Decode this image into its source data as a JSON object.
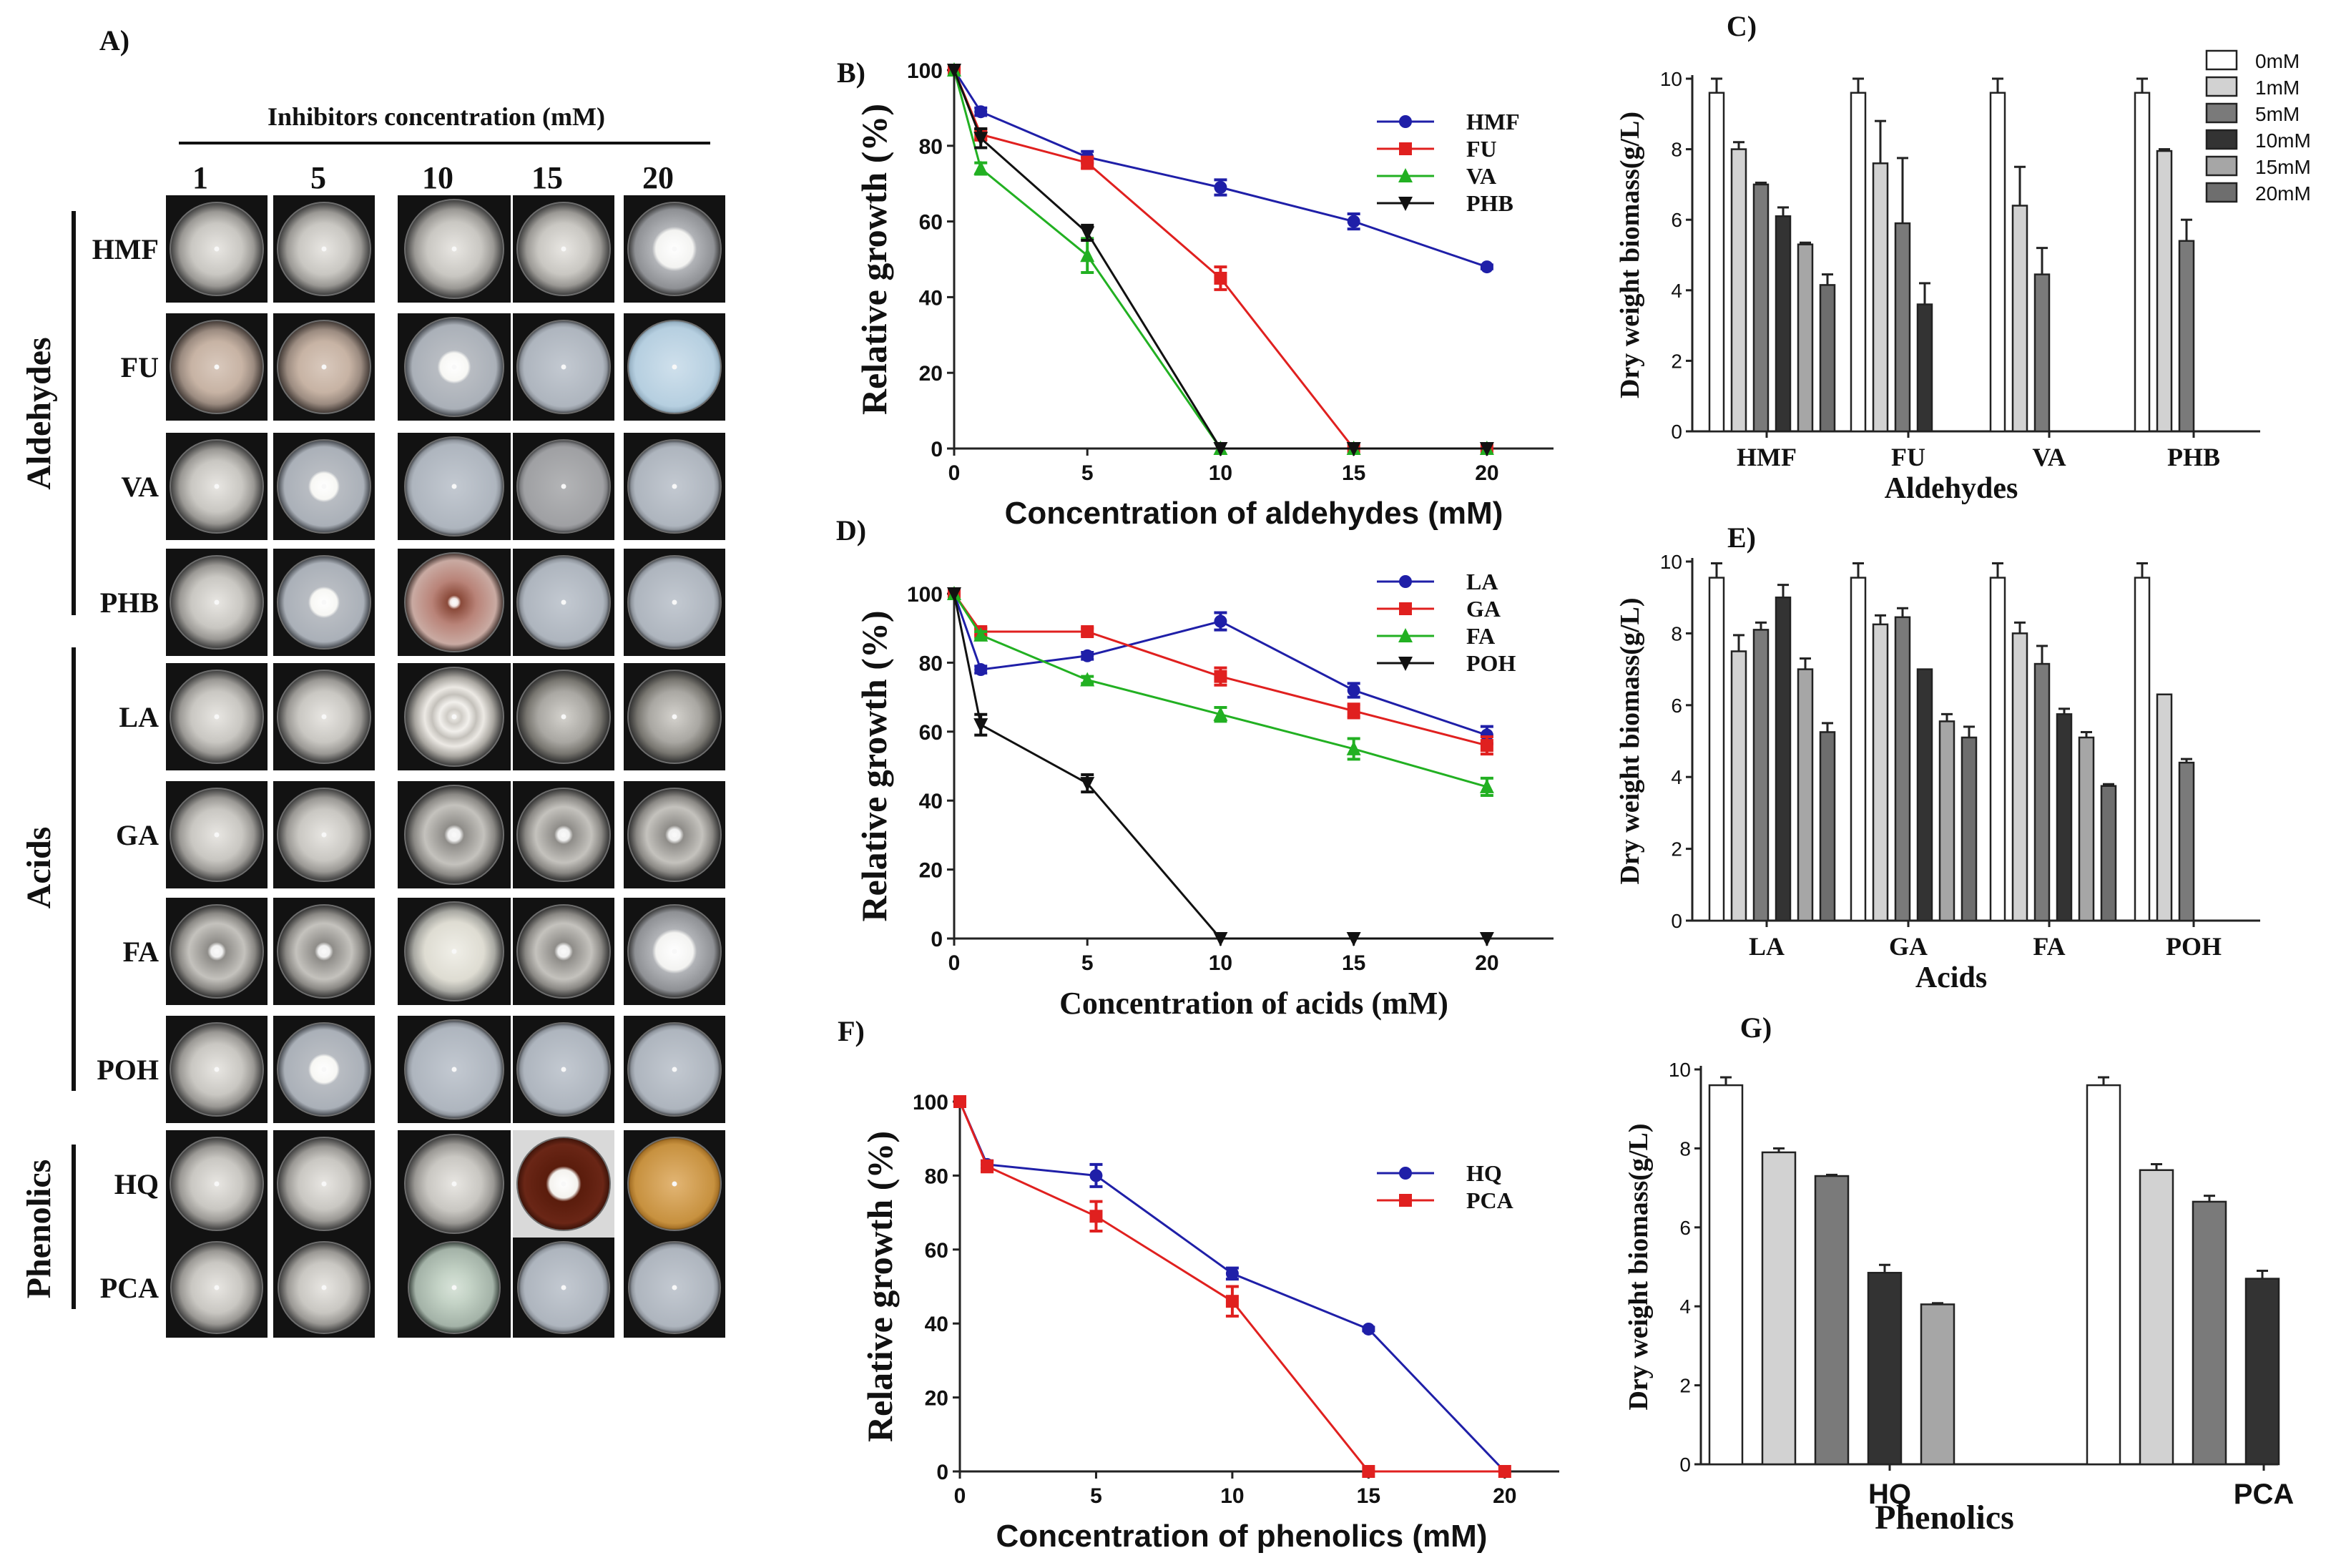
{
  "panel_labels": {
    "A": "A)",
    "B": "B)",
    "C": "C)",
    "D": "D)",
    "E": "E)",
    "F": "F)",
    "G": "G)"
  },
  "grid": {
    "header": "Inhibitors concentration (mM)",
    "columns": [
      "1",
      "5",
      "10",
      "15",
      "20"
    ],
    "groups": [
      {
        "label": "Aldehydes",
        "rows": [
          "HMF",
          "FU",
          "VA",
          "PHB"
        ]
      },
      {
        "label": "Acids",
        "rows": [
          "LA",
          "GA",
          "FA",
          "POH"
        ]
      },
      {
        "label": "Phenolics",
        "rows": [
          "HQ",
          "PCA"
        ]
      }
    ],
    "plates": {
      "HMF": [
        "r-fuzzy",
        "r-fuzzy",
        "r-fuzzy",
        "r-fuzzy",
        "r-white-med"
      ],
      "FU": [
        "r-tan",
        "r-tan",
        "r-white-small",
        "r-clear",
        "r-clear-blue"
      ],
      "VA": [
        "r-fuzzy",
        "r-white-small",
        "r-clear",
        "r-clear-gray",
        "r-clear"
      ],
      "PHB": [
        "r-fuzzy",
        "r-white-small",
        "r-brown-ring",
        "r-clear",
        "r-clear"
      ],
      "LA": [
        "r-fuzzy",
        "r-fuzzy",
        "r-rings",
        "r-fuzzy-dark",
        "r-fuzzy-dark"
      ],
      "GA": [
        "r-fuzzy",
        "r-fuzzy",
        "r-fuzzy-center",
        "r-fuzzy-center",
        "r-fuzzy-center"
      ],
      "FA": [
        "r-fuzzy-center",
        "r-fuzzy-center",
        "r-fuzzy-light",
        "r-fuzzy-center",
        "r-white-med"
      ],
      "POH": [
        "r-fuzzy",
        "r-white-small",
        "r-clear",
        "r-clear",
        "r-clear"
      ],
      "HQ": [
        "r-fuzzy",
        "r-fuzzy",
        "r-fuzzy",
        "r-dark-brown",
        "r-amber"
      ],
      "PCA": [
        "r-fuzzy",
        "r-fuzzy",
        "r-clear-green",
        "r-clear",
        "r-clear"
      ]
    }
  },
  "chart_data": [
    {
      "panel": "B",
      "type": "line",
      "xlabel": "Concentration of aldehydes (mM)",
      "ylabel": "Relative growth (%)",
      "xlim": [
        0,
        22.5
      ],
      "ylim": [
        0,
        100
      ],
      "xticks": [
        0,
        5,
        10,
        15,
        20
      ],
      "yticks": [
        0,
        20,
        40,
        60,
        80,
        100
      ],
      "series": [
        {
          "name": "HMF",
          "color": "#1f1fa8",
          "marker": "circle",
          "x": [
            0,
            1,
            5,
            10,
            15,
            20
          ],
          "y": [
            100,
            89,
            77,
            69,
            60,
            48
          ],
          "err": [
            0,
            1,
            1.5,
            2,
            2,
            0.5
          ]
        },
        {
          "name": "FU",
          "color": "#e0201f",
          "marker": "square",
          "x": [
            0,
            1,
            5,
            10,
            15,
            20
          ],
          "y": [
            100,
            83,
            75.5,
            45,
            0,
            0
          ],
          "err": [
            0,
            1.5,
            1.5,
            3,
            0,
            0
          ]
        },
        {
          "name": "VA",
          "color": "#22b022",
          "marker": "triangle",
          "x": [
            0,
            1,
            5,
            10,
            15,
            20
          ],
          "y": [
            100,
            74,
            51,
            0,
            0,
            0
          ],
          "err": [
            0,
            1.5,
            4.5,
            0,
            0,
            0
          ]
        },
        {
          "name": "PHB",
          "color": "#111111",
          "marker": "triangle-down",
          "x": [
            0,
            1,
            5,
            10,
            15,
            20
          ],
          "y": [
            100,
            82,
            57,
            0,
            0,
            0
          ],
          "err": [
            0,
            2.5,
            2,
            0,
            0,
            0
          ]
        }
      ]
    },
    {
      "panel": "D",
      "type": "line",
      "xlabel": "Concentration of acids (mM)",
      "ylabel": "Relative growth (%)",
      "xlim": [
        0,
        22.5
      ],
      "ylim": [
        0,
        100
      ],
      "xticks": [
        0,
        5,
        10,
        15,
        20
      ],
      "yticks": [
        0,
        20,
        40,
        60,
        80,
        100
      ],
      "series": [
        {
          "name": "LA",
          "color": "#1f1fa8",
          "marker": "circle",
          "x": [
            0,
            1,
            5,
            10,
            15,
            20
          ],
          "y": [
            100,
            78,
            82,
            92,
            72,
            59
          ],
          "err": [
            0,
            1,
            1,
            2.5,
            2,
            2.5
          ]
        },
        {
          "name": "GA",
          "color": "#e0201f",
          "marker": "square",
          "x": [
            0,
            1,
            5,
            10,
            15,
            20
          ],
          "y": [
            100,
            89,
            89,
            76,
            66,
            56
          ],
          "err": [
            0,
            1,
            1,
            2.5,
            2,
            2.5
          ]
        },
        {
          "name": "FA",
          "color": "#22b022",
          "marker": "triangle",
          "x": [
            0,
            1,
            5,
            10,
            15,
            20
          ],
          "y": [
            100,
            88,
            75,
            65,
            55,
            44
          ],
          "err": [
            0,
            1,
            1,
            2,
            3,
            2.5
          ]
        },
        {
          "name": "POH",
          "color": "#111111",
          "marker": "triangle-down",
          "x": [
            0,
            1,
            5,
            10,
            15,
            20
          ],
          "y": [
            100,
            62,
            45,
            0,
            0,
            0
          ],
          "err": [
            0,
            3,
            2.5,
            0,
            0,
            0
          ]
        }
      ]
    },
    {
      "panel": "F",
      "type": "line",
      "xlabel": "Concentration of phenolics (mM)",
      "ylabel": "Relative growth (%)",
      "xlim": [
        0,
        22
      ],
      "ylim": [
        0,
        100
      ],
      "xticks": [
        0,
        5,
        10,
        15,
        20
      ],
      "yticks": [
        0,
        20,
        40,
        60,
        80,
        100
      ],
      "series": [
        {
          "name": "HQ",
          "color": "#1f1fa8",
          "marker": "circle",
          "x": [
            0,
            1,
            5,
            10,
            15,
            20
          ],
          "y": [
            100,
            83,
            80,
            53.5,
            38.5,
            0
          ],
          "err": [
            0,
            1,
            3,
            1.5,
            0.5,
            0
          ]
        },
        {
          "name": "PCA",
          "color": "#e0201f",
          "marker": "square",
          "x": [
            0,
            1,
            5,
            10,
            15,
            20
          ],
          "y": [
            100,
            82.5,
            69,
            46,
            0,
            0
          ],
          "err": [
            0,
            1.5,
            4,
            4,
            0,
            0
          ]
        }
      ]
    },
    {
      "panel": "C",
      "type": "bar",
      "xlabel": "Aldehydes",
      "ylabel": "Dry weight biomass(g/L)",
      "ylim": [
        0,
        10
      ],
      "yticks": [
        0,
        2,
        4,
        6,
        8,
        10
      ],
      "categories": [
        "HMF",
        "FU",
        "VA",
        "PHB"
      ],
      "legend": [
        "0mM",
        "1mM",
        "5mM",
        "10mM",
        "15mM",
        "20mM"
      ],
      "colors": [
        "#ffffff",
        "#d2d2d2",
        "#7a7a7a",
        "#333333",
        "#a6a6a6",
        "#6e6e6e"
      ],
      "series": [
        {
          "name": "0mM",
          "values": [
            9.6,
            9.6,
            9.6,
            9.6
          ],
          "err": [
            0.4,
            0.4,
            0.4,
            0.4
          ]
        },
        {
          "name": "1mM",
          "values": [
            8.0,
            7.6,
            6.4,
            7.95
          ],
          "err": [
            0.2,
            1.2,
            1.1,
            0.05
          ]
        },
        {
          "name": "5mM",
          "values": [
            7.0,
            5.9,
            4.45,
            5.4
          ],
          "err": [
            0.05,
            1.85,
            0.75,
            0.6
          ]
        },
        {
          "name": "10mM",
          "values": [
            6.1,
            3.6,
            0,
            0
          ],
          "err": [
            0.25,
            0.6,
            0,
            0
          ]
        },
        {
          "name": "15mM",
          "values": [
            5.3,
            0,
            0,
            0
          ],
          "err": [
            0.05,
            0,
            0,
            0
          ]
        },
        {
          "name": "20mM",
          "values": [
            4.15,
            0,
            0,
            0
          ],
          "err": [
            0.3,
            0,
            0,
            0
          ]
        }
      ]
    },
    {
      "panel": "E",
      "type": "bar",
      "xlabel": "Acids",
      "ylabel": "Dry weight biomass(g/L)",
      "ylim": [
        0,
        10
      ],
      "yticks": [
        0,
        2,
        4,
        6,
        8,
        10
      ],
      "categories": [
        "LA",
        "GA",
        "FA",
        "POH"
      ],
      "colors": [
        "#ffffff",
        "#d2d2d2",
        "#7a7a7a",
        "#333333",
        "#a6a6a6",
        "#6e6e6e"
      ],
      "series": [
        {
          "name": "0mM",
          "values": [
            9.55,
            9.55,
            9.55,
            9.55
          ],
          "err": [
            0.4,
            0.4,
            0.4,
            0.4
          ]
        },
        {
          "name": "1mM",
          "values": [
            7.5,
            8.25,
            8.0,
            6.3
          ],
          "err": [
            0.45,
            0.25,
            0.3,
            0.02
          ]
        },
        {
          "name": "5mM",
          "values": [
            8.1,
            8.45,
            7.15,
            4.4
          ],
          "err": [
            0.2,
            0.25,
            0.5,
            0.1
          ]
        },
        {
          "name": "10mM",
          "values": [
            9.0,
            7.0,
            5.75,
            0
          ],
          "err": [
            0.35,
            0.02,
            0.15,
            0
          ]
        },
        {
          "name": "15mM",
          "values": [
            7.0,
            5.55,
            5.1,
            0
          ],
          "err": [
            0.3,
            0.2,
            0.15,
            0
          ]
        },
        {
          "name": "20mM",
          "values": [
            5.25,
            5.1,
            3.75,
            0
          ],
          "err": [
            0.25,
            0.3,
            0.05,
            0
          ]
        }
      ]
    },
    {
      "panel": "G",
      "type": "bar",
      "xlabel": "Phenolics",
      "ylabel": "Dry weight biomass(g/L)",
      "ylim": [
        0,
        10
      ],
      "yticks": [
        0,
        2,
        4,
        6,
        8,
        10
      ],
      "categories": [
        "HQ",
        "PCA"
      ],
      "colors": [
        "#ffffff",
        "#d2d2d2",
        "#7a7a7a",
        "#333333",
        "#a6a6a6"
      ],
      "series": [
        {
          "name": "0mM",
          "values": [
            9.6,
            9.6
          ],
          "err": [
            0.2,
            0.2
          ]
        },
        {
          "name": "1mM",
          "values": [
            7.9,
            7.45
          ],
          "err": [
            0.1,
            0.15
          ]
        },
        {
          "name": "5mM",
          "values": [
            7.3,
            6.65
          ],
          "err": [
            0.03,
            0.15
          ]
        },
        {
          "name": "10mM",
          "values": [
            4.85,
            4.7
          ],
          "err": [
            0.2,
            0.2
          ]
        },
        {
          "name": "15mM",
          "values": [
            4.05,
            0
          ],
          "err": [
            0.03,
            0
          ]
        }
      ]
    }
  ]
}
